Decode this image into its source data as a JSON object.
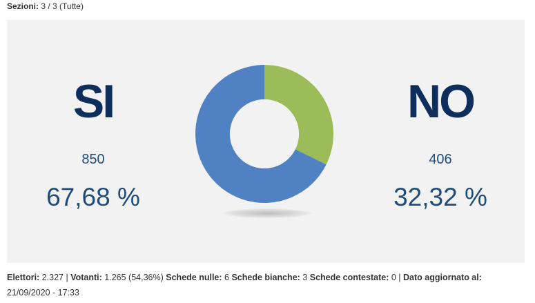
{
  "header": {
    "sezioni_label": "Sezioni:",
    "sezioni_value": "3 / 3 (Tutte)"
  },
  "results": {
    "si": {
      "label": "SI",
      "votes": "850",
      "percent": "67,68 %"
    },
    "no": {
      "label": "NO",
      "votes": "406",
      "percent": "32,32 %"
    }
  },
  "chart_data": {
    "type": "pie",
    "categories": [
      "SI",
      "NO"
    ],
    "values": [
      67.68,
      32.32
    ],
    "colors": [
      "#4f81c3",
      "#9bbc59"
    ]
  },
  "footer": {
    "elettori_label": "Elettori:",
    "elettori_value": "2.327 |",
    "votanti_label": "Votanti:",
    "votanti_value": "1.265 (54,36%)",
    "nulle_label": "Schede nulle:",
    "nulle_value": "6",
    "bianche_label": "Schede bianche:",
    "bianche_value": "3",
    "contestate_label": "Schede contestate:",
    "contestate_value": "0 |",
    "aggiornato_label": "Dato aggiornato al:",
    "aggiornato_value": "21/09/2020 - 17:33"
  }
}
